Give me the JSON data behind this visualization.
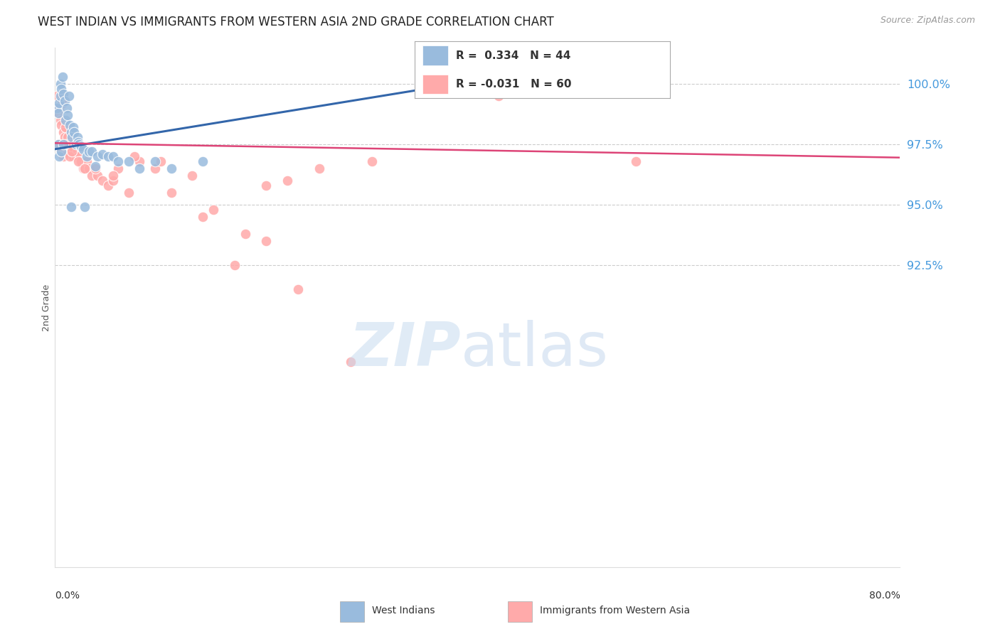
{
  "title": "WEST INDIAN VS IMMIGRANTS FROM WESTERN ASIA 2ND GRADE CORRELATION CHART",
  "source": "Source: ZipAtlas.com",
  "ylabel": "2nd Grade",
  "xmin": 0.0,
  "xmax": 80.0,
  "ymin": 80.0,
  "ymax": 101.5,
  "ytick_vals": [
    92.5,
    95.0,
    97.5,
    100.0
  ],
  "blue_color": "#99BBDD",
  "pink_color": "#FFAAAA",
  "line_blue_color": "#3366AA",
  "line_pink_color": "#DD4477",
  "blue_line_x0": 0.0,
  "blue_line_y0": 97.3,
  "blue_line_x1": 45.0,
  "blue_line_y1": 100.5,
  "pink_line_x0": 0.0,
  "pink_line_y0": 97.55,
  "pink_line_x1": 80.0,
  "pink_line_y1": 96.95,
  "blue_scatter_x": [
    0.2,
    0.3,
    0.4,
    0.5,
    0.5,
    0.6,
    0.7,
    0.8,
    0.9,
    1.0,
    1.1,
    1.2,
    1.3,
    1.4,
    1.5,
    1.6,
    1.7,
    1.8,
    2.0,
    2.1,
    2.2,
    2.3,
    2.5,
    2.7,
    3.0,
    3.2,
    3.5,
    4.0,
    4.5,
    5.0,
    5.5,
    6.0,
    7.0,
    8.0,
    9.5,
    11.0,
    14.0,
    0.3,
    0.4,
    0.6,
    0.8,
    1.5,
    2.8,
    3.8
  ],
  "blue_scatter_y": [
    99.0,
    98.8,
    99.2,
    100.0,
    99.5,
    99.8,
    100.3,
    99.6,
    99.3,
    98.5,
    99.0,
    98.7,
    99.5,
    98.3,
    98.0,
    97.8,
    98.2,
    98.0,
    97.5,
    97.8,
    97.6,
    97.5,
    97.4,
    97.3,
    97.0,
    97.2,
    97.2,
    97.0,
    97.1,
    97.0,
    97.0,
    96.8,
    96.8,
    96.5,
    96.8,
    96.5,
    96.8,
    97.5,
    97.0,
    97.2,
    97.5,
    94.9,
    94.9,
    96.6
  ],
  "pink_scatter_x": [
    0.2,
    0.3,
    0.4,
    0.5,
    0.6,
    0.7,
    0.8,
    0.9,
    1.0,
    1.1,
    1.2,
    1.3,
    1.5,
    1.6,
    1.7,
    1.8,
    2.0,
    2.1,
    2.2,
    2.4,
    2.5,
    2.7,
    3.0,
    3.2,
    3.5,
    4.0,
    4.5,
    5.0,
    5.5,
    6.0,
    7.0,
    8.0,
    9.5,
    11.0,
    13.0,
    15.0,
    18.0,
    20.0,
    22.0,
    25.0,
    30.0,
    42.0,
    55.0,
    0.4,
    0.6,
    0.8,
    1.0,
    1.4,
    1.6,
    2.2,
    2.8,
    3.8,
    5.5,
    7.5,
    10.0,
    14.0,
    17.0,
    20.0,
    23.0,
    28.0
  ],
  "pink_scatter_y": [
    99.5,
    98.8,
    99.0,
    98.5,
    98.3,
    99.2,
    98.0,
    97.8,
    98.2,
    97.5,
    97.8,
    97.5,
    97.2,
    97.5,
    97.0,
    97.3,
    97.0,
    97.2,
    97.0,
    96.8,
    96.8,
    96.5,
    96.8,
    96.5,
    96.2,
    96.2,
    96.0,
    95.8,
    96.0,
    96.5,
    95.5,
    96.8,
    96.5,
    95.5,
    96.2,
    94.8,
    93.8,
    95.8,
    96.0,
    96.5,
    96.8,
    99.5,
    96.8,
    97.5,
    97.2,
    97.0,
    97.5,
    97.0,
    97.2,
    96.8,
    96.5,
    96.5,
    96.2,
    97.0,
    96.8,
    94.5,
    92.5,
    93.5,
    91.5,
    88.5
  ]
}
